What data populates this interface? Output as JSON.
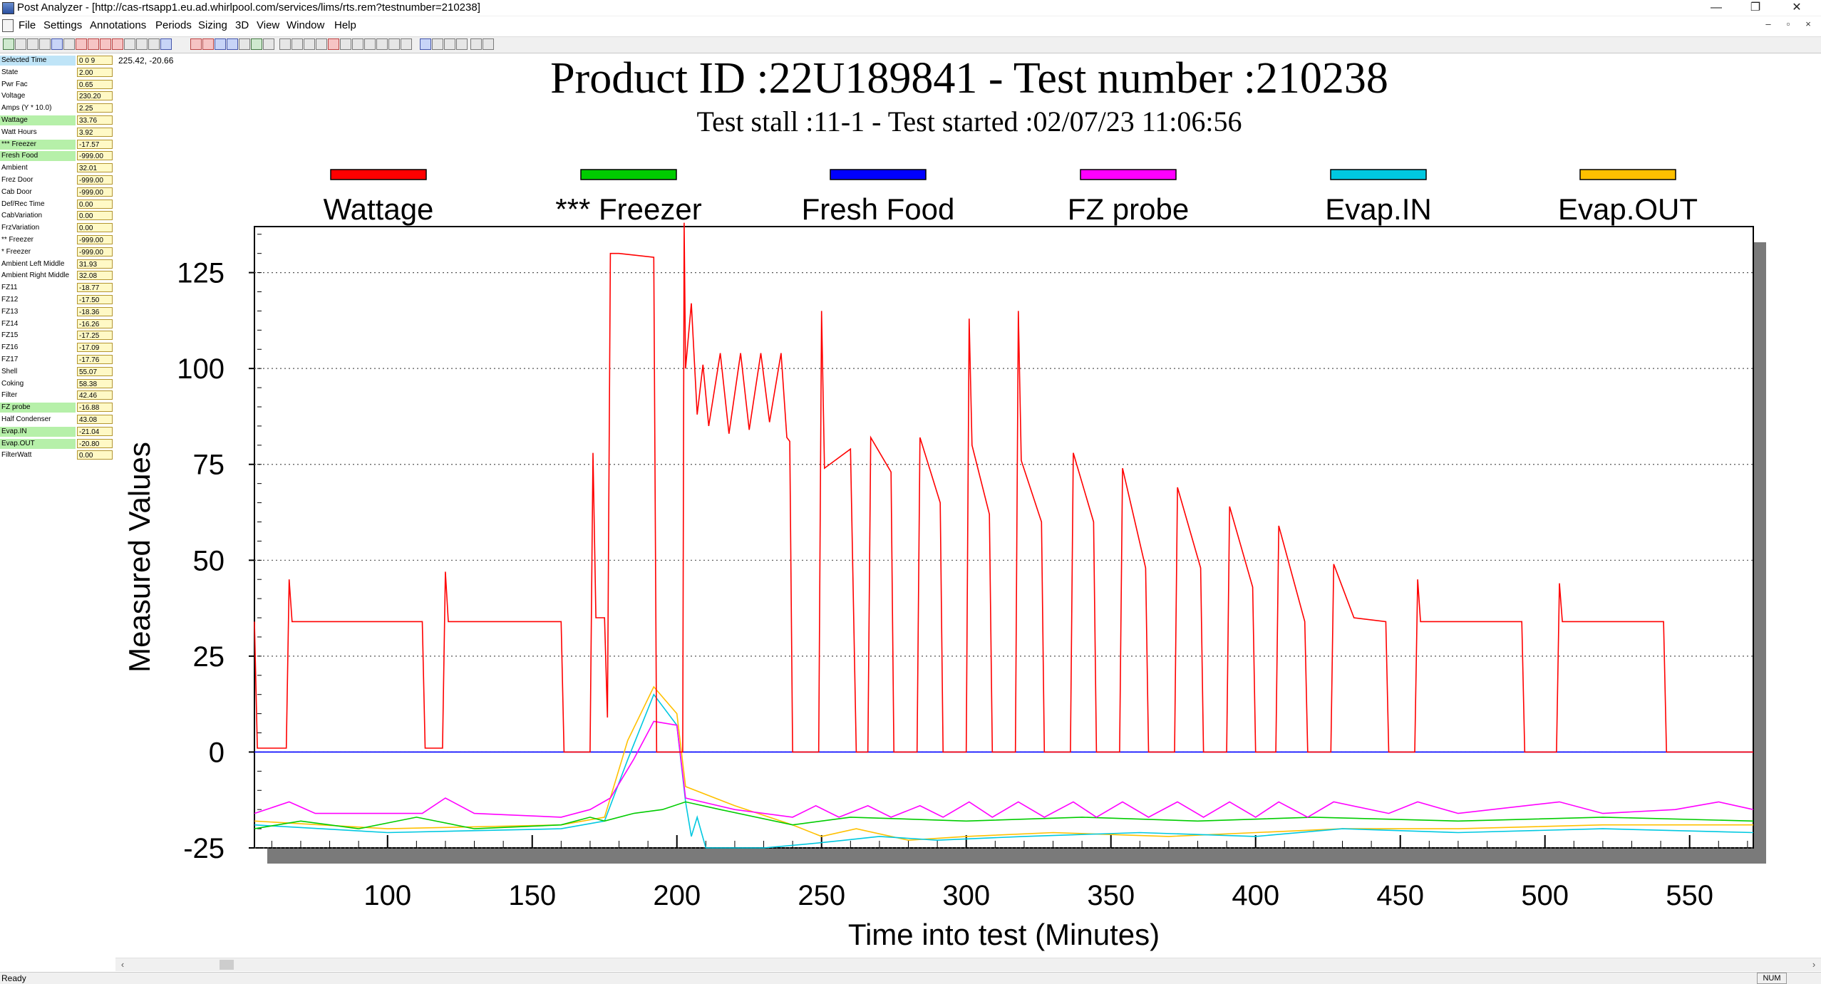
{
  "window": {
    "title": "Post Analyzer - [http://cas-rtsapp1.eu.ad.whirlpool.com/services/lims/rts.rem?testnumber=210238]",
    "min_glyph": "—",
    "restore_glyph": "❐",
    "close_glyph": "✕"
  },
  "menu": [
    "File",
    "Settings",
    "Annotations",
    "Periods",
    "Sizing",
    "3D",
    "View",
    "Window",
    "Help"
  ],
  "mdi": {
    "min_glyph": "–",
    "restore_glyph": "▫",
    "close_glyph": "×"
  },
  "coords_readout": "225.42, -20.66",
  "panel": [
    {
      "label": "Selected Time",
      "value": "0 0 9",
      "style": "sel"
    },
    {
      "label": "State",
      "value": "2.00",
      "style": ""
    },
    {
      "label": "Pwr Fac",
      "value": "0.65",
      "style": ""
    },
    {
      "label": "Voltage",
      "value": "230.20",
      "style": ""
    },
    {
      "label": "Amps (Y * 10.0)",
      "value": "2.25",
      "style": ""
    },
    {
      "label": "Wattage",
      "value": "33.76",
      "style": "hl"
    },
    {
      "label": "Watt Hours",
      "value": "3.92",
      "style": ""
    },
    {
      "label": "*** Freezer",
      "value": "-17.57",
      "style": "hl"
    },
    {
      "label": "Fresh Food",
      "value": "-999.00",
      "style": "hl"
    },
    {
      "label": "Ambient",
      "value": "32.01",
      "style": ""
    },
    {
      "label": "Frez Door",
      "value": "-999.00",
      "style": ""
    },
    {
      "label": "Cab Door",
      "value": "-999.00",
      "style": ""
    },
    {
      "label": "Def/Rec Time",
      "value": "0.00",
      "style": ""
    },
    {
      "label": "CabVariation",
      "value": "0.00",
      "style": ""
    },
    {
      "label": "FrzVariation",
      "value": "0.00",
      "style": ""
    },
    {
      "label": "** Freezer",
      "value": "-999.00",
      "style": ""
    },
    {
      "label": "* Freezer",
      "value": "-999.00",
      "style": ""
    },
    {
      "label": "Ambient Left Middle",
      "value": "31.93",
      "style": ""
    },
    {
      "label": "Ambient Right Middle",
      "value": "32.08",
      "style": ""
    },
    {
      "label": "FZ11",
      "value": "-18.77",
      "style": ""
    },
    {
      "label": "FZ12",
      "value": "-17.50",
      "style": ""
    },
    {
      "label": "FZ13",
      "value": "-18.36",
      "style": ""
    },
    {
      "label": "FZ14",
      "value": "-16.26",
      "style": ""
    },
    {
      "label": "FZ15",
      "value": "-17.25",
      "style": ""
    },
    {
      "label": "FZ16",
      "value": "-17.09",
      "style": ""
    },
    {
      "label": "FZ17",
      "value": "-17.76",
      "style": ""
    },
    {
      "label": "Shell",
      "value": "55.07",
      "style": ""
    },
    {
      "label": "Coking",
      "value": "58.38",
      "style": ""
    },
    {
      "label": "Filter",
      "value": "42.46",
      "style": ""
    },
    {
      "label": "FZ probe",
      "value": "-16.88",
      "style": "hl"
    },
    {
      "label": "Half Condenser",
      "value": "43.08",
      "style": ""
    },
    {
      "label": "Evap.IN",
      "value": "-21.04",
      "style": "hl"
    },
    {
      "label": "Evap.OUT",
      "value": "-20.80",
      "style": "hl"
    },
    {
      "label": "FilterWatt",
      "value": "0.00",
      "style": ""
    }
  ],
  "status": {
    "text": "Ready",
    "num": "NUM"
  },
  "colors": {
    "wattage": "#ff0000",
    "freezer": "#00cc00",
    "fresh_food": "#0000ff",
    "fz_probe": "#ff00ff",
    "evap_in": "#00c8e0",
    "evap_out": "#ffc000"
  },
  "chart_data": {
    "type": "line",
    "title": "Product ID :22U189841 - Test number :210238",
    "subtitle": "Test stall :11-1 - Test started :02/07/23 11:06:56",
    "xlabel": "Time into test (Minutes)",
    "ylabel": "Measured Values",
    "xlim": [
      54,
      572
    ],
    "ylim": [
      -25,
      137
    ],
    "x_ticks": [
      100,
      150,
      200,
      250,
      300,
      350,
      400,
      450,
      500,
      550
    ],
    "y_ticks": [
      -25,
      0,
      25,
      50,
      75,
      100,
      125
    ],
    "grid": "horizontal dotted",
    "legend_position": "top",
    "legend": [
      "Wattage",
      "*** Freezer",
      "Fresh Food",
      "FZ probe",
      "Evap.IN",
      "Evap.OUT"
    ],
    "series": [
      {
        "name": "Wattage",
        "points": [
          [
            54,
            34
          ],
          [
            55,
            1
          ],
          [
            65,
            1
          ],
          [
            66,
            45
          ],
          [
            67,
            34
          ],
          [
            112,
            34
          ],
          [
            113,
            1
          ],
          [
            119,
            1
          ],
          [
            120,
            47
          ],
          [
            121,
            34
          ],
          [
            160,
            34
          ],
          [
            161,
            0
          ],
          [
            170,
            0
          ],
          [
            171,
            78
          ],
          [
            172,
            35
          ],
          [
            175,
            35
          ],
          [
            176,
            9
          ],
          [
            177,
            130
          ],
          [
            180,
            130
          ],
          [
            192,
            129
          ],
          [
            193,
            0
          ],
          [
            202,
            0
          ],
          [
            202.5,
            138
          ],
          [
            203,
            100
          ],
          [
            205,
            117
          ],
          [
            207,
            88
          ],
          [
            209,
            101
          ],
          [
            211,
            85
          ],
          [
            215,
            104
          ],
          [
            218,
            83
          ],
          [
            222,
            104
          ],
          [
            225,
            84
          ],
          [
            229,
            104
          ],
          [
            232,
            86
          ],
          [
            236,
            104
          ],
          [
            238,
            82
          ],
          [
            239,
            81
          ],
          [
            240,
            0
          ],
          [
            249,
            0
          ],
          [
            250,
            115
          ],
          [
            251,
            74
          ],
          [
            260,
            79
          ],
          [
            262,
            0
          ],
          [
            266,
            0
          ],
          [
            267,
            82
          ],
          [
            274,
            73
          ],
          [
            275,
            0
          ],
          [
            283,
            0
          ],
          [
            284,
            82
          ],
          [
            291,
            65
          ],
          [
            292,
            0
          ],
          [
            300,
            0
          ],
          [
            301,
            113
          ],
          [
            302,
            80
          ],
          [
            308,
            62
          ],
          [
            309,
            0
          ],
          [
            317,
            0
          ],
          [
            318,
            115
          ],
          [
            319,
            76
          ],
          [
            326,
            60
          ],
          [
            327,
            0
          ],
          [
            336,
            0
          ],
          [
            337,
            78
          ],
          [
            344,
            60
          ],
          [
            345,
            0
          ],
          [
            353,
            0
          ],
          [
            354,
            74
          ],
          [
            362,
            48
          ],
          [
            363,
            0
          ],
          [
            372,
            0
          ],
          [
            373,
            69
          ],
          [
            381,
            48
          ],
          [
            382,
            0
          ],
          [
            390,
            0
          ],
          [
            391,
            64
          ],
          [
            399,
            43
          ],
          [
            400,
            0
          ],
          [
            407,
            0
          ],
          [
            408,
            59
          ],
          [
            417,
            34
          ],
          [
            418,
            0
          ],
          [
            426,
            0
          ],
          [
            427,
            49
          ],
          [
            434,
            35
          ],
          [
            445,
            34
          ],
          [
            446,
            0
          ],
          [
            455,
            0
          ],
          [
            456,
            45
          ],
          [
            457,
            34
          ],
          [
            492,
            34
          ],
          [
            493,
            0
          ],
          [
            504,
            0
          ],
          [
            505,
            44
          ],
          [
            506,
            34
          ],
          [
            541,
            34
          ],
          [
            542,
            0
          ],
          [
            572,
            0
          ]
        ]
      },
      {
        "name": "*** Freezer",
        "points": [
          [
            54,
            -20
          ],
          [
            70,
            -18
          ],
          [
            90,
            -20
          ],
          [
            110,
            -17
          ],
          [
            130,
            -20
          ],
          [
            160,
            -19
          ],
          [
            170,
            -17
          ],
          [
            175,
            -18
          ],
          [
            185,
            -16
          ],
          [
            195,
            -15
          ],
          [
            203,
            -13
          ],
          [
            215,
            -15
          ],
          [
            240,
            -19
          ],
          [
            260,
            -17
          ],
          [
            300,
            -18
          ],
          [
            340,
            -17
          ],
          [
            380,
            -18
          ],
          [
            420,
            -17
          ],
          [
            470,
            -18
          ],
          [
            520,
            -17
          ],
          [
            572,
            -18
          ]
        ]
      },
      {
        "name": "Fresh Food",
        "points": [
          [
            54,
            0
          ],
          [
            572,
            0
          ]
        ]
      },
      {
        "name": "FZ probe",
        "points": [
          [
            54,
            -16
          ],
          [
            66,
            -13
          ],
          [
            75,
            -16
          ],
          [
            112,
            -16
          ],
          [
            120,
            -12
          ],
          [
            130,
            -16
          ],
          [
            160,
            -17
          ],
          [
            170,
            -15
          ],
          [
            177,
            -12
          ],
          [
            185,
            -2
          ],
          [
            192,
            8
          ],
          [
            200,
            7
          ],
          [
            203,
            -12
          ],
          [
            220,
            -15
          ],
          [
            240,
            -17
          ],
          [
            248,
            -14
          ],
          [
            256,
            -17
          ],
          [
            266,
            -14
          ],
          [
            274,
            -17
          ],
          [
            284,
            -14
          ],
          [
            292,
            -17
          ],
          [
            301,
            -13
          ],
          [
            309,
            -17
          ],
          [
            318,
            -13
          ],
          [
            327,
            -17
          ],
          [
            337,
            -13
          ],
          [
            345,
            -17
          ],
          [
            354,
            -13
          ],
          [
            363,
            -17
          ],
          [
            373,
            -13
          ],
          [
            382,
            -17
          ],
          [
            391,
            -13
          ],
          [
            400,
            -17
          ],
          [
            408,
            -13
          ],
          [
            418,
            -17
          ],
          [
            427,
            -13
          ],
          [
            446,
            -16
          ],
          [
            456,
            -13
          ],
          [
            470,
            -16
          ],
          [
            505,
            -13
          ],
          [
            520,
            -16
          ],
          [
            545,
            -15
          ],
          [
            560,
            -13
          ],
          [
            572,
            -15
          ]
        ]
      },
      {
        "name": "Evap.IN",
        "points": [
          [
            54,
            -19
          ],
          [
            100,
            -21
          ],
          [
            160,
            -20
          ],
          [
            175,
            -18
          ],
          [
            183,
            -2
          ],
          [
            192,
            15
          ],
          [
            200,
            7
          ],
          [
            203,
            -13
          ],
          [
            205,
            -22
          ],
          [
            207,
            -17
          ],
          [
            210,
            -25
          ],
          [
            230,
            -25
          ],
          [
            245,
            -24
          ],
          [
            258,
            -23
          ],
          [
            270,
            -22
          ],
          [
            290,
            -23
          ],
          [
            320,
            -22
          ],
          [
            360,
            -21
          ],
          [
            400,
            -22
          ],
          [
            430,
            -20
          ],
          [
            470,
            -21
          ],
          [
            520,
            -20
          ],
          [
            572,
            -21
          ]
        ]
      },
      {
        "name": "Evap.OUT",
        "points": [
          [
            54,
            -18
          ],
          [
            100,
            -20
          ],
          [
            160,
            -19
          ],
          [
            175,
            -17
          ],
          [
            183,
            3
          ],
          [
            192,
            17
          ],
          [
            200,
            10
          ],
          [
            203,
            -9
          ],
          [
            220,
            -14
          ],
          [
            240,
            -19
          ],
          [
            250,
            -22
          ],
          [
            262,
            -20
          ],
          [
            280,
            -23
          ],
          [
            300,
            -22
          ],
          [
            330,
            -21
          ],
          [
            370,
            -22
          ],
          [
            400,
            -21
          ],
          [
            430,
            -20
          ],
          [
            470,
            -20
          ],
          [
            520,
            -19
          ],
          [
            572,
            -19
          ]
        ]
      }
    ]
  }
}
